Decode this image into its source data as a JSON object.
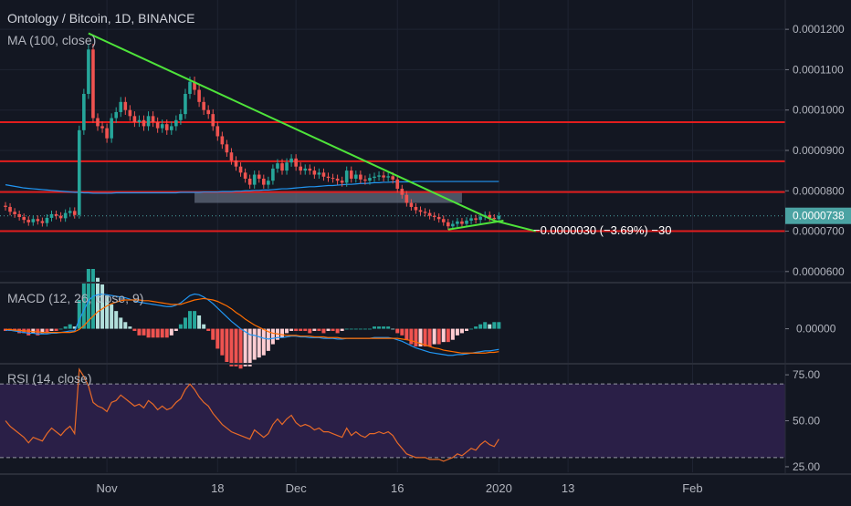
{
  "header": {
    "symbol": "Ontology / Bitcoin, 1D, BINANCE",
    "ma_label": "MA (100, close)",
    "macd_label": "MACD (12, 26, close, 9)",
    "rsi_label": "RSI (14, close)"
  },
  "colors": {
    "background": "#131722",
    "up": "#26a69a",
    "down": "#ef5350",
    "trendline": "#4ee33a",
    "resistance": "#e21d1d",
    "zone": "#6b7489",
    "ma": "#2196f3",
    "macd_line": "#2196f3",
    "signal_line": "#ff6d00",
    "rsi_line": "#e86a28",
    "rsi_band": "#2a1f47",
    "price_badge": "#4ba3a3"
  },
  "chart_data": [
    {
      "type": "candlestick",
      "title": "Ontology / Bitcoin, 1D, BINANCE",
      "ylim": [
        5.77e-05,
        0.000125
      ],
      "y_ticks": [
        "0.0001200",
        "0.0001100",
        "0.0001000",
        "0.0000900",
        "0.0000800",
        "0.0000700",
        "0.0000600"
      ],
      "x_ticks": [
        "Nov",
        "18",
        "Dec",
        "16",
        "2020",
        "13",
        "Feb"
      ],
      "current_price": "0.0000738",
      "horizontal_levels": [
        9.7e-05,
        8.73e-05,
        7.97e-05,
        7e-05
      ],
      "zone": {
        "from_day": 41,
        "to_day": 99,
        "low": 7.7e-05,
        "high": 7.97e-05
      },
      "ma_label": "MA (100, close)",
      "measure_label": "−0.0000030 (−3.69%) −30",
      "close": [
        7.6e-05,
        7.48e-05,
        7.42e-05,
        7.35e-05,
        7.28e-05,
        7.22e-05,
        7.3e-05,
        7.25e-05,
        7.2e-05,
        7.33e-05,
        7.42e-05,
        7.38e-05,
        7.32e-05,
        7.45e-05,
        7.5e-05,
        7.4e-05,
        9.5e-05,
        0.000104,
        0.000115,
        9.8e-05,
        9.6e-05,
        9.55e-05,
        9.3e-05,
        9.8e-05,
        9.95e-05,
        0.000102,
        0.0001,
        9.85e-05,
        9.7e-05,
        9.75e-05,
        9.6e-05,
        9.85e-05,
        9.7e-05,
        9.55e-05,
        9.65e-05,
        9.5e-05,
        9.6e-05,
        9.75e-05,
        9.9e-05,
        0.000104,
        0.000107,
        0.000105,
        0.000102,
        0.0001,
        9.9e-05,
        9.6e-05,
        9.35e-05,
        9.15e-05,
        8.95e-05,
        8.75e-05,
        8.6e-05,
        8.45e-05,
        8.3e-05,
        8.15e-05,
        8.4e-05,
        8.3e-05,
        8.15e-05,
        8.25e-05,
        8.55e-05,
        8.68e-05,
        8.5e-05,
        8.7e-05,
        8.8e-05,
        8.6e-05,
        8.5e-05,
        8.55e-05,
        8.5e-05,
        8.4e-05,
        8.45e-05,
        8.35e-05,
        8.32e-05,
        8.3e-05,
        8.25e-05,
        8.2e-05,
        8.5e-05,
        8.3e-05,
        8.4e-05,
        8.28e-05,
        8.25e-05,
        8.32e-05,
        8.35e-05,
        8.38e-05,
        8.33e-05,
        8.36e-05,
        8.28e-05,
        8.05e-05,
        7.9e-05,
        7.7e-05,
        7.6e-05,
        7.52e-05,
        7.48e-05,
        7.45e-05,
        7.38e-05,
        7.35e-05,
        7.3e-05,
        7.22e-05,
        7.12e-05,
        7.18e-05,
        7.24e-05,
        7.18e-05,
        7.26e-05,
        7.32e-05,
        7.28e-05,
        7.36e-05,
        7.4e-05,
        7.33e-05,
        7.3e-05,
        7.38e-05
      ],
      "ma_100": [
        8.15e-05,
        8.13e-05,
        8.11e-05,
        8.09e-05,
        8.07e-05,
        8.06e-05,
        8.05e-05,
        8.04e-05,
        8.03e-05,
        8.02e-05,
        8.01e-05,
        8e-05,
        7.99e-05,
        7.98e-05,
        7.97e-05,
        7.96e-05,
        7.96e-05,
        7.95e-05,
        7.95e-05,
        7.94e-05,
        7.94e-05,
        7.94e-05,
        7.94e-05,
        7.94e-05,
        7.95e-05,
        7.95e-05,
        7.95e-05,
        7.95e-05,
        7.95e-05,
        7.95e-05,
        7.95e-05,
        7.95e-05,
        7.95e-05,
        7.95e-05,
        7.95e-05,
        7.95e-05,
        7.95e-05,
        7.95e-05,
        7.96e-05,
        7.96e-05,
        7.96e-05,
        7.96e-05,
        7.96e-05,
        7.97e-05,
        7.97e-05,
        7.97e-05,
        7.97e-05,
        7.98e-05,
        7.98e-05,
        7.98e-05,
        7.99e-05,
        7.99e-05,
        8e-05,
        8e-05,
        8.01e-05,
        8.01e-05,
        8.02e-05,
        8.02e-05,
        8.03e-05,
        8.04e-05,
        8.05e-05,
        8.05e-05,
        8.06e-05,
        8.07e-05,
        8.08e-05,
        8.09e-05,
        8.1e-05,
        8.1e-05,
        8.11e-05,
        8.12e-05,
        8.13e-05,
        8.13e-05,
        8.14e-05,
        8.15e-05,
        8.16e-05,
        8.16e-05,
        8.17e-05,
        8.18e-05,
        8.18e-05,
        8.19e-05,
        8.2e-05,
        8.2e-05,
        8.21e-05,
        8.21e-05,
        8.22e-05,
        8.22e-05,
        8.22e-05,
        8.22e-05,
        8.22e-05,
        8.23e-05,
        8.23e-05,
        8.23e-05,
        8.23e-05,
        8.23e-05,
        8.23e-05,
        8.23e-05,
        8.23e-05,
        8.23e-05,
        8.23e-05,
        8.23e-05,
        8.23e-05,
        8.23e-05,
        8.23e-05,
        8.23e-05,
        8.23e-05,
        8.23e-05,
        8.23e-05,
        8.23e-05
      ],
      "trendlines": [
        {
          "from": [
            18,
            0.000119
          ],
          "to": [
            106,
            7.26e-05
          ]
        },
        {
          "from": [
            96,
            7.04e-05
          ],
          "to": [
            108,
            7.26e-05
          ]
        },
        {
          "from": [
            106,
            7.26e-05
          ],
          "to": [
            115,
            7e-05
          ]
        }
      ]
    },
    {
      "type": "line",
      "title": "MACD (12, 26, close, 9)",
      "ylim": [
        -4.5e-06,
        6e-06
      ],
      "y_ticks": [
        "0.00000"
      ],
      "macd": [
        -2e-07,
        -2e-07,
        -3e-07,
        -4e-07,
        -5e-07,
        -6e-07,
        -6e-07,
        -7e-07,
        -7e-07,
        -7e-07,
        -6e-07,
        -6e-07,
        -5e-07,
        -4e-07,
        -3e-07,
        -3e-07,
        1.2e-06,
        2.5e-06,
        3.8e-06,
        4.4e-06,
        4.6e-06,
        4.7e-06,
        4.6e-06,
        4.5e-06,
        4.4e-06,
        4.3e-06,
        4.2e-06,
        4e-06,
        3.8e-06,
        3.6e-06,
        3.5e-06,
        3.4e-06,
        3.3e-06,
        3.2e-06,
        3.1e-06,
        3e-06,
        3e-06,
        3.2e-06,
        3.5e-06,
        4e-06,
        4.5e-06,
        4.7e-06,
        4.6e-06,
        4.3e-06,
        3.9e-06,
        3.4e-06,
        2.8e-06,
        2.2e-06,
        1.6e-06,
        1e-06,
        5e-07,
        0.0,
        -4e-07,
        -8e-07,
        -9e-07,
        -1.1e-06,
        -1.3e-06,
        -1.4e-06,
        -1.3e-06,
        -1.2e-06,
        -1.2e-06,
        -1.1e-06,
        -1e-06,
        -1e-06,
        -1.1e-06,
        -1.1e-06,
        -1.2e-06,
        -1.2e-06,
        -1.2e-06,
        -1.3e-06,
        -1.3e-06,
        -1.3e-06,
        -1.4e-06,
        -1.4e-06,
        -1.3e-06,
        -1.3e-06,
        -1.3e-06,
        -1.3e-06,
        -1.3e-06,
        -1.3e-06,
        -1.2e-06,
        -1.2e-06,
        -1.2e-06,
        -1.2e-06,
        -1.3e-06,
        -1.5e-06,
        -1.7e-06,
        -2e-06,
        -2.3e-06,
        -2.6e-06,
        -2.8e-06,
        -3e-06,
        -3.2e-06,
        -3.3e-06,
        -3.4e-06,
        -3.5e-06,
        -3.6e-06,
        -3.6e-06,
        -3.5e-06,
        -3.5e-06,
        -3.4e-06,
        -3.3e-06,
        -3.2e-06,
        -3.1e-06,
        -3e-06,
        -3e-06,
        -2.9e-06,
        -2.8e-06
      ],
      "signal": [
        -1e-07,
        -1e-07,
        -2e-07,
        -2e-07,
        -3e-07,
        -3e-07,
        -4e-07,
        -4e-07,
        -5e-07,
        -5e-07,
        -5e-07,
        -5e-07,
        -5e-07,
        -5e-07,
        -5e-07,
        -4e-07,
        -1e-07,
        4e-07,
        1.1e-06,
        1.7e-06,
        2.3e-06,
        2.7e-06,
        3.1e-06,
        3.4e-06,
        3.6e-06,
        3.8e-06,
        3.9e-06,
        3.9e-06,
        3.9e-06,
        3.9e-06,
        3.8e-06,
        3.8e-06,
        3.7e-06,
        3.6e-06,
        3.5e-06,
        3.4e-06,
        3.3e-06,
        3.3e-06,
        3.3e-06,
        3.5e-06,
        3.7e-06,
        3.9e-06,
        4e-06,
        4.1e-06,
        4e-06,
        3.9e-06,
        3.7e-06,
        3.4e-06,
        3.1e-06,
        2.7e-06,
        2.2e-06,
        1.8e-06,
        1.3e-06,
        9e-07,
        5e-07,
        2e-07,
        -1e-07,
        -4e-07,
        -6e-07,
        -7e-07,
        -8e-07,
        -9e-07,
        -9e-07,
        -9e-07,
        -1e-06,
        -1e-06,
        -1e-06,
        -1.1e-06,
        -1.1e-06,
        -1.1e-06,
        -1.2e-06,
        -1.2e-06,
        -1.2e-06,
        -1.3e-06,
        -1.3e-06,
        -1.3e-06,
        -1.3e-06,
        -1.3e-06,
        -1.3e-06,
        -1.3e-06,
        -1.3e-06,
        -1.3e-06,
        -1.3e-06,
        -1.3e-06,
        -1.3e-06,
        -1.3e-06,
        -1.4e-06,
        -1.5e-06,
        -1.6e-06,
        -1.8e-06,
        -2e-06,
        -2.2e-06,
        -2.4e-06,
        -2.6e-06,
        -2.7e-06,
        -2.9e-06,
        -3e-06,
        -3.1e-06,
        -3.2e-06,
        -3.3e-06,
        -3.3e-06,
        -3.3e-06,
        -3.3e-06,
        -3.3e-06,
        -3.3e-06,
        -3.2e-06,
        -3.2e-06,
        -3.1e-06
      ]
    },
    {
      "type": "line",
      "title": "RSI (14, close)",
      "ylim": [
        22,
        80
      ],
      "y_ticks": [
        "75.00",
        "50.00",
        "25.00"
      ],
      "band": [
        30,
        70
      ],
      "rsi": [
        50,
        47,
        45,
        43,
        41,
        38,
        41,
        40,
        39,
        43,
        46,
        44,
        42,
        45,
        47,
        43,
        78,
        74,
        69,
        60,
        58,
        57,
        55,
        60,
        61,
        64,
        62,
        60,
        58,
        59,
        57,
        61,
        59,
        56,
        58,
        56,
        57,
        60,
        62,
        67,
        70,
        67,
        63,
        60,
        58,
        54,
        51,
        48,
        46,
        44,
        43,
        42,
        41,
        40,
        45,
        43,
        41,
        43,
        48,
        51,
        48,
        51,
        53,
        49,
        47,
        48,
        47,
        45,
        46,
        44,
        44,
        43,
        42,
        41,
        46,
        42,
        44,
        42,
        41,
        43,
        43,
        44,
        43,
        44,
        42,
        38,
        35,
        32,
        31,
        30,
        30,
        30,
        29,
        29,
        29,
        28,
        29,
        30,
        32,
        31,
        33,
        35,
        34,
        37,
        39,
        37,
        36,
        40
      ]
    }
  ]
}
